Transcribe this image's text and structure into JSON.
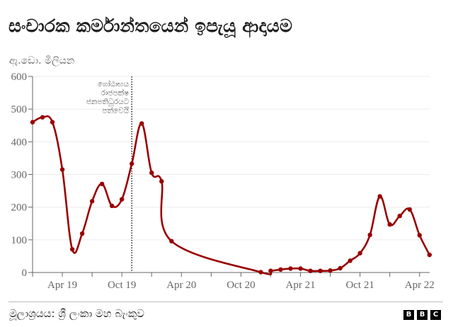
{
  "header": {
    "title": "සංචාරක කර්මාන්තයෙන් ඉපැයූ ආදායම",
    "unit_label": "ඇ.ඩො. මිලියන"
  },
  "footer": {
    "source": "මූලාශ්‍රයය: ශ්‍රී ලංකා මහ බැංකුව",
    "logo_letters": [
      "B",
      "B",
      "C"
    ]
  },
  "colors": {
    "line": "#990000",
    "grid": "#eeeeee",
    "axis": "#666666",
    "text": "#222222"
  },
  "chart_data": {
    "type": "line",
    "title": "සංචාරක කර්මාන්තයෙන් ඉපැයූ ආදායම",
    "ylabel": "ඇ.ඩො. මිලියන",
    "xlabel": "",
    "ylim": [
      0,
      600
    ],
    "yticks": [
      0,
      100,
      200,
      300,
      400,
      500,
      600
    ],
    "grid": true,
    "legend": "none",
    "xtick_labels": [
      "Apr 19",
      "Oct 19",
      "Apr 20",
      "Oct 20",
      "Apr 21",
      "Oct 21",
      "Apr 22"
    ],
    "annotation": {
      "x": "Nov 19",
      "lines": [
        "ගෝඨාභය",
        "රාජපක්ෂ",
        "ජනපතිධූරයට",
        "පත්වෙයි"
      ],
      "style": "dotted vertical line"
    },
    "series": [
      {
        "name": "Tourism earnings",
        "points": [
          {
            "x": "Jan 19",
            "y": 460
          },
          {
            "x": "Feb 19",
            "y": 475
          },
          {
            "x": "Mar 19",
            "y": 460
          },
          {
            "x": "Apr 19",
            "y": 315
          },
          {
            "x": "May 19",
            "y": 71
          },
          {
            "x": "Jun 19",
            "y": 119
          },
          {
            "x": "Jul 19",
            "y": 218
          },
          {
            "x": "Aug 19",
            "y": 271
          },
          {
            "x": "Sep 19",
            "y": 204
          },
          {
            "x": "Oct 19",
            "y": 224
          },
          {
            "x": "Nov 19",
            "y": 333
          },
          {
            "x": "Dec 19",
            "y": 456
          },
          {
            "x": "Jan 20",
            "y": 305
          },
          {
            "x": "Feb 20",
            "y": 279
          },
          {
            "x": "Mar 20",
            "y": 96
          },
          {
            "x": "Dec 20",
            "y": 1
          },
          {
            "x": "Jan 21",
            "y": 5
          },
          {
            "x": "Feb 21",
            "y": 9
          },
          {
            "x": "Mar 21",
            "y": 12
          },
          {
            "x": "Apr 21",
            "y": 12
          },
          {
            "x": "May 21",
            "y": 5
          },
          {
            "x": "Jun 21",
            "y": 5
          },
          {
            "x": "Jul 21",
            "y": 6
          },
          {
            "x": "Aug 21",
            "y": 13
          },
          {
            "x": "Sep 21",
            "y": 36
          },
          {
            "x": "Oct 21",
            "y": 59
          },
          {
            "x": "Nov 21",
            "y": 115
          },
          {
            "x": "Dec 21",
            "y": 233
          },
          {
            "x": "Jan 22",
            "y": 147
          },
          {
            "x": "Feb 22",
            "y": 173
          },
          {
            "x": "Mar 22",
            "y": 193
          },
          {
            "x": "Apr 22",
            "y": 114
          },
          {
            "x": "May 22",
            "y": 54
          }
        ]
      }
    ]
  }
}
